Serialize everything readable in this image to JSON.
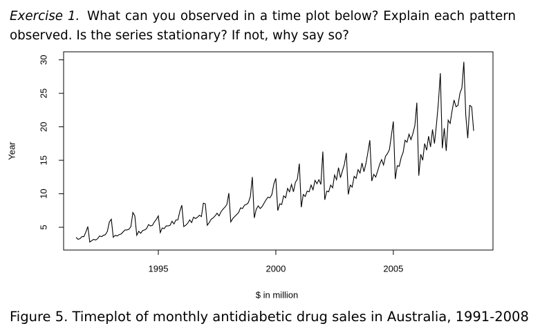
{
  "exercise": {
    "label": "Exercise 1.",
    "text": "What can you observed in a time plot below? Explain each pattern observed. Is the series stationary? If not, why say so?"
  },
  "caption": "Figure 5. Timeplot of monthly antidiabetic drug sales in Australia, 1991-2008",
  "chart_data": {
    "type": "line",
    "x_label": "$ in million",
    "y_label": "Year",
    "color": "#000000",
    "xlim": [
      1990.97,
      2009.24
    ],
    "xticks": [
      1995,
      2000,
      2005
    ],
    "ylim": [
      1.6,
      31.2
    ],
    "yticks": [
      5,
      10,
      15,
      20,
      25,
      30
    ],
    "x": [
      1991.5,
      1991.583,
      1991.667,
      1991.75,
      1991.833,
      1991.917,
      1992,
      1992.083,
      1992.167,
      1992.25,
      1992.333,
      1992.417,
      1992.5,
      1992.583,
      1992.667,
      1992.75,
      1992.833,
      1992.917,
      1993,
      1993.083,
      1993.167,
      1993.25,
      1993.333,
      1993.417,
      1993.5,
      1993.583,
      1993.667,
      1993.75,
      1993.833,
      1993.917,
      1994,
      1994.083,
      1994.167,
      1994.25,
      1994.333,
      1994.417,
      1994.5,
      1994.583,
      1994.667,
      1994.75,
      1994.833,
      1994.917,
      1995,
      1995.083,
      1995.167,
      1995.25,
      1995.333,
      1995.417,
      1995.5,
      1995.583,
      1995.667,
      1995.75,
      1995.833,
      1995.917,
      1996,
      1996.083,
      1996.167,
      1996.25,
      1996.333,
      1996.417,
      1996.5,
      1996.583,
      1996.667,
      1996.75,
      1996.833,
      1996.917,
      1997,
      1997.083,
      1997.167,
      1997.25,
      1997.333,
      1997.417,
      1997.5,
      1997.583,
      1997.667,
      1997.75,
      1997.833,
      1997.917,
      1998,
      1998.083,
      1998.167,
      1998.25,
      1998.333,
      1998.417,
      1998.5,
      1998.583,
      1998.667,
      1998.75,
      1998.833,
      1998.917,
      1999,
      1999.083,
      1999.167,
      1999.25,
      1999.333,
      1999.417,
      1999.5,
      1999.583,
      1999.667,
      1999.75,
      1999.833,
      1999.917,
      2000,
      2000.083,
      2000.167,
      2000.25,
      2000.333,
      2000.417,
      2000.5,
      2000.583,
      2000.667,
      2000.75,
      2000.833,
      2000.917,
      2001,
      2001.083,
      2001.167,
      2001.25,
      2001.333,
      2001.417,
      2001.5,
      2001.583,
      2001.667,
      2001.75,
      2001.833,
      2001.917,
      2002,
      2002.083,
      2002.167,
      2002.25,
      2002.333,
      2002.417,
      2002.5,
      2002.583,
      2002.667,
      2002.75,
      2002.833,
      2002.917,
      2003,
      2003.083,
      2003.167,
      2003.25,
      2003.333,
      2003.417,
      2003.5,
      2003.583,
      2003.667,
      2003.75,
      2003.833,
      2003.917,
      2004,
      2004.083,
      2004.167,
      2004.25,
      2004.333,
      2004.417,
      2004.5,
      2004.583,
      2004.667,
      2004.75,
      2004.833,
      2004.917,
      2005,
      2005.083,
      2005.167,
      2005.25,
      2005.333,
      2005.417,
      2005.5,
      2005.583,
      2005.667,
      2005.75,
      2005.833,
      2005.917,
      2006,
      2006.083,
      2006.167,
      2006.25,
      2006.333,
      2006.417,
      2006.5,
      2006.583,
      2006.667,
      2006.75,
      2006.833,
      2006.917,
      2007,
      2007.083,
      2007.167,
      2007.25,
      2007.333,
      2007.417,
      2007.5,
      2007.583,
      2007.667,
      2007.75,
      2007.833,
      2007.917,
      2008,
      2008.083,
      2008.167,
      2008.25,
      2008.333,
      2008.417
    ],
    "values": [
      3.5,
      3.2,
      3.3,
      3.6,
      3.6,
      4.3,
      5.1,
      2.8,
      3.0,
      3.2,
      3.1,
      3.3,
      3.7,
      3.6,
      3.8,
      3.9,
      4.4,
      5.8,
      6.2,
      3.5,
      3.8,
      3.7,
      3.9,
      4.0,
      4.3,
      4.6,
      4.6,
      4.7,
      5.1,
      7.2,
      6.7,
      3.8,
      4.4,
      4.1,
      4.5,
      4.6,
      4.8,
      5.4,
      5.2,
      5.3,
      5.8,
      6.2,
      6.7,
      4.2,
      4.9,
      4.8,
      5.2,
      5.2,
      5.3,
      5.9,
      5.5,
      6.1,
      6.1,
      7.4,
      8.3,
      5.1,
      5.3,
      5.6,
      6.1,
      5.7,
      6.5,
      6.3,
      6.5,
      6.8,
      6.6,
      8.6,
      8.5,
      5.3,
      5.7,
      6.2,
      6.4,
      6.7,
      7.1,
      6.7,
      7.3,
      7.7,
      8.0,
      8.4,
      10.1,
      5.8,
      6.3,
      6.6,
      6.9,
      7.2,
      7.9,
      7.8,
      8.3,
      8.4,
      8.7,
      9.6,
      12.5,
      6.4,
      7.7,
      8.2,
      7.8,
      8.1,
      8.6,
      9.1,
      9.5,
      9.4,
      9.9,
      11.5,
      12.3,
      7.5,
      8.5,
      8.4,
      9.7,
      9.4,
      10.8,
      10.3,
      11.4,
      10.3,
      11.7,
      12.2,
      14.5,
      8.0,
      9.9,
      9.6,
      10.4,
      10.3,
      11.3,
      10.6,
      12.0,
      11.5,
      12.1,
      11.4,
      16.3,
      9.1,
      10.4,
      10.3,
      11.3,
      10.9,
      12.8,
      12.1,
      13.9,
      12.4,
      13.4,
      14.4,
      16.1,
      9.9,
      11.3,
      11.0,
      12.6,
      12.3,
      13.6,
      13.1,
      14.6,
      13.3,
      14.5,
      16.2,
      18.0,
      11.9,
      12.9,
      12.5,
      13.4,
      14.4,
      15.1,
      14.3,
      15.6,
      16.0,
      16.6,
      18.7,
      20.8,
      12.2,
      14.2,
      14.1,
      15.4,
      16.2,
      18.0,
      17.7,
      18.9,
      18.1,
      19.0,
      20.2,
      23.6,
      12.7,
      15.9,
      15.0,
      17.5,
      16.5,
      18.6,
      17.0,
      19.6,
      17.5,
      20.3,
      23.6,
      28.0,
      16.8,
      19.8,
      16.4,
      21.0,
      20.5,
      22.4,
      24.0,
      23.0,
      23.2,
      25.0,
      25.8,
      29.7,
      21.7,
      18.3,
      23.2,
      23.0,
      19.4
    ]
  }
}
